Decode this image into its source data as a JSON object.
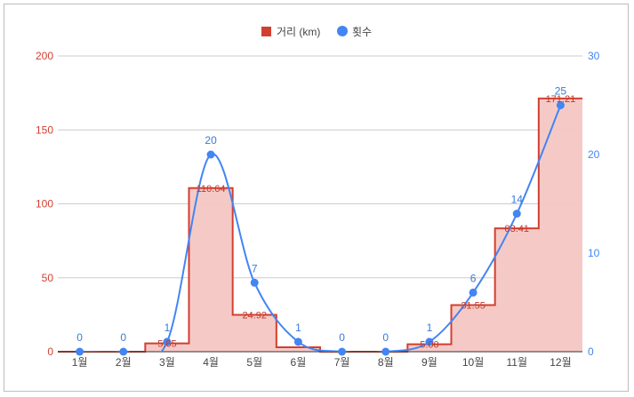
{
  "chart_data": {
    "type": "bar",
    "categories": [
      "1월",
      "2월",
      "3월",
      "4월",
      "5월",
      "6월",
      "7월",
      "8월",
      "9월",
      "10월",
      "11월",
      "12월"
    ],
    "series": [
      {
        "name": "거리 (km)",
        "kind": "stepped-area",
        "axis": "left",
        "values": [
          0,
          0,
          5.65,
          110.64,
          24.92,
          3,
          0,
          0,
          5.0,
          31.55,
          83.41,
          171.21
        ],
        "labels": [
          "",
          "",
          "5.65",
          "110.64",
          "24.92",
          "",
          "",
          "",
          "5.00",
          "31.55",
          "83.41",
          "171.21"
        ],
        "color": "#d23f31",
        "fill": "#f4c7c3"
      },
      {
        "name": "횟수",
        "kind": "smooth-line",
        "axis": "right",
        "values": [
          0,
          0,
          1,
          20,
          7,
          1,
          0,
          0,
          1,
          6,
          14,
          25
        ],
        "labels": [
          "0",
          "0",
          "1",
          "20",
          "7",
          "1",
          "0",
          "0",
          "1",
          "6",
          "14",
          "25"
        ],
        "color": "#4285f4"
      }
    ],
    "y_left": {
      "ticks": [
        "0",
        "50",
        "100",
        "150",
        "200"
      ],
      "range": [
        0,
        200
      ]
    },
    "y_right": {
      "ticks": [
        "0",
        "10",
        "20",
        "30"
      ],
      "range": [
        0,
        30
      ]
    },
    "grid": true,
    "legend": "top"
  }
}
